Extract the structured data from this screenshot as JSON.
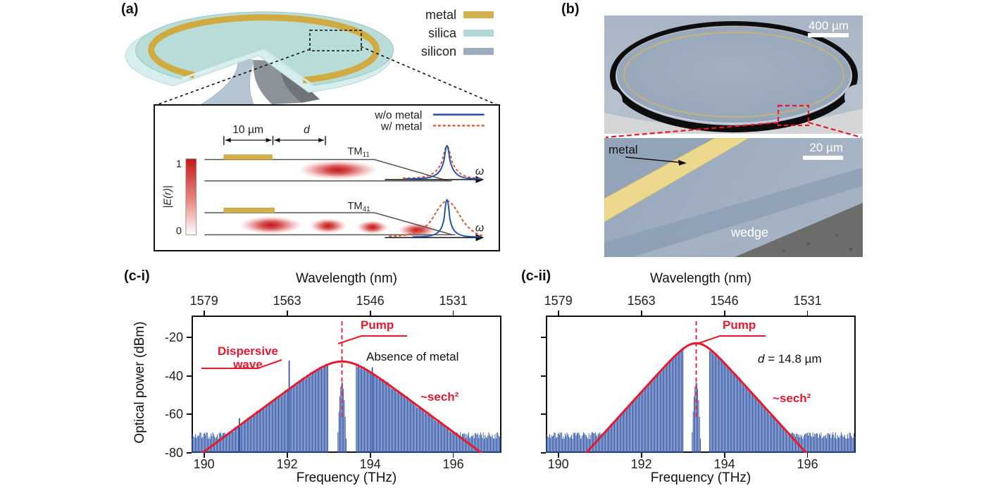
{
  "panels": {
    "a": "(a)",
    "b": "(b)",
    "ci": "(c-i)",
    "cii": "(c-ii)"
  },
  "colors": {
    "accent_red": "#e8192c",
    "comb_blue": "#2b51a5",
    "metal_gold": "#d2b14e",
    "silica_teal": "#b2d9d6",
    "silicon_gray": "#9dadbd"
  },
  "legend": {
    "items": [
      {
        "label": "metal",
        "color": "#d2b14e"
      },
      {
        "label": "silica",
        "color": "#b2d9d6"
      },
      {
        "label": "silicon",
        "color": "#9dadbd"
      }
    ]
  },
  "inset": {
    "legend_without": "w/o metal",
    "legend_with": "w/ metal",
    "dim_width": "10 µm",
    "dim_d": "d",
    "mode1": "TM",
    "mode1_sub": "11",
    "mode2": "TM",
    "mode2_sub": "41",
    "colorbar_top": "1",
    "colorbar_bottom": "0",
    "colorbar_label": "|E(r)|",
    "omega": "ω"
  },
  "sem_top": {
    "scale_label": "400 µm"
  },
  "sem_bottom": {
    "scale_label": "20 µm",
    "metal_label": "metal",
    "wedge_label": "wedge"
  },
  "chart_data": [
    {
      "id": "c-i",
      "type": "line",
      "subtype": "frequency-comb-spectrum",
      "xlabel": "Frequency (THz)",
      "ylabel": "Optical power (dBm)",
      "top_xlabel": "Wavelength (nm)",
      "xlim": [
        189.7,
        197.16
      ],
      "ylim": [
        -80,
        -8.6
      ],
      "xticks": [
        190,
        192,
        194,
        196
      ],
      "yticks": [
        -20,
        -40,
        -60,
        -80
      ],
      "ytick_labels_visible": true,
      "top_tick_labels": [
        "1579",
        "1563",
        "1546",
        "1531"
      ],
      "grid": false,
      "envelope": {
        "model": "sech2",
        "peak_dbm": -32.5,
        "center_thz": 193.32,
        "scale_thz": 0.545
      },
      "pump": {
        "freq_thz": 193.32
      },
      "noise_floor_dbm": -71,
      "comb_spacing_thz": 0.022,
      "pump_notch": {
        "half_width_thz": 0.33,
        "residual_peak_dbm": -43
      },
      "spikes": [
        {
          "freq_thz": 190.85,
          "peak_dbm": -62
        },
        {
          "freq_thz": 192.05,
          "peak_dbm": -32,
          "label": "Dispersive wave"
        },
        {
          "freq_thz": 194.05,
          "peak_dbm": -35.5
        }
      ],
      "annotations": {
        "pump": "Pump",
        "dispersive_line1": "Dispersive",
        "dispersive_line2": "wave",
        "note": "Absence of metal",
        "sech": "~sech²"
      },
      "colors": {
        "comb": "#2b51a5",
        "envelope": "#e8192c"
      }
    },
    {
      "id": "c-ii",
      "type": "line",
      "subtype": "frequency-comb-spectrum",
      "xlabel": "Frequency (THz)",
      "ylabel": "",
      "top_xlabel": "Wavelength (nm)",
      "xlim": [
        189.7,
        197.16
      ],
      "ylim": [
        -80,
        -8.6
      ],
      "xticks": [
        190,
        192,
        194,
        196
      ],
      "yticks": [
        -20,
        -40,
        -60,
        -80
      ],
      "ytick_labels_visible": false,
      "top_tick_labels": [
        "1579",
        "1563",
        "1546",
        "1531"
      ],
      "grid": false,
      "envelope": {
        "model": "sech2",
        "peak_dbm": -23,
        "center_thz": 193.32,
        "scale_thz": 0.365
      },
      "pump": {
        "freq_thz": 193.32
      },
      "noise_floor_dbm": -71,
      "comb_spacing_thz": 0.022,
      "pump_notch": {
        "half_width_thz": 0.3,
        "residual_peak_dbm": -43
      },
      "spikes": [],
      "annotations": {
        "pump": "Pump",
        "d_var": "d",
        "d_rest": " = 14.8 µm",
        "sech": "~sech²"
      },
      "colors": {
        "comb": "#2b51a5",
        "envelope": "#e8192c"
      }
    }
  ]
}
